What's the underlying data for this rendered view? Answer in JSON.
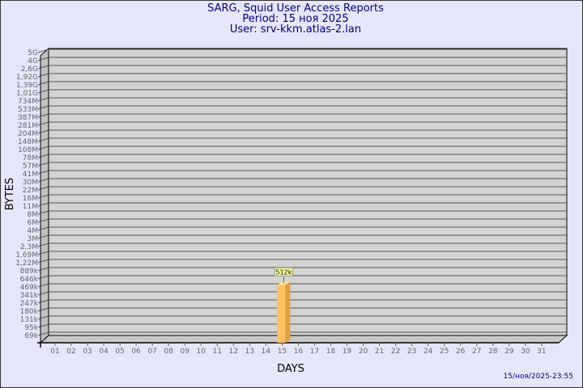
{
  "header": {
    "title": "SARG, Squid User Access Reports",
    "period": "Period: 15 ноя 2025",
    "user": "User: srv-kkm.atlas-2.lan"
  },
  "footer": {
    "timestamp": "15/ноя/2025-23:55"
  },
  "chart_data": {
    "type": "bar",
    "xlabel": "DAYS",
    "ylabel": "BYTES",
    "y_scale": "log",
    "y_ticks": [
      "5G",
      "4G",
      "2,6G",
      "1,92G",
      "1,39G",
      "1,01G",
      "734M",
      "533M",
      "387M",
      "281M",
      "204M",
      "148M",
      "108M",
      "78M",
      "57M",
      "41M",
      "30M",
      "22M",
      "16M",
      "11M",
      "8M",
      "6M",
      "4M",
      "3M",
      "2,3M",
      "1,69M",
      "1,22M",
      "889k",
      "646k",
      "469k",
      "341k",
      "247k",
      "180k",
      "131k",
      "95k",
      "69k"
    ],
    "categories": [
      "01",
      "02",
      "03",
      "04",
      "05",
      "06",
      "07",
      "08",
      "09",
      "10",
      "11",
      "12",
      "13",
      "14",
      "15",
      "16",
      "17",
      "18",
      "19",
      "20",
      "21",
      "22",
      "23",
      "24",
      "25",
      "26",
      "27",
      "28",
      "29",
      "30",
      "31"
    ],
    "bars": [
      {
        "day": "15",
        "value_bytes": 512000,
        "label": "512k"
      }
    ],
    "grid": true,
    "colors": {
      "background": "#e6e6fa",
      "plot": "#d3d3d3",
      "bar": "#ffc060",
      "bar_side": "#e0a040",
      "title": "#000088"
    }
  }
}
